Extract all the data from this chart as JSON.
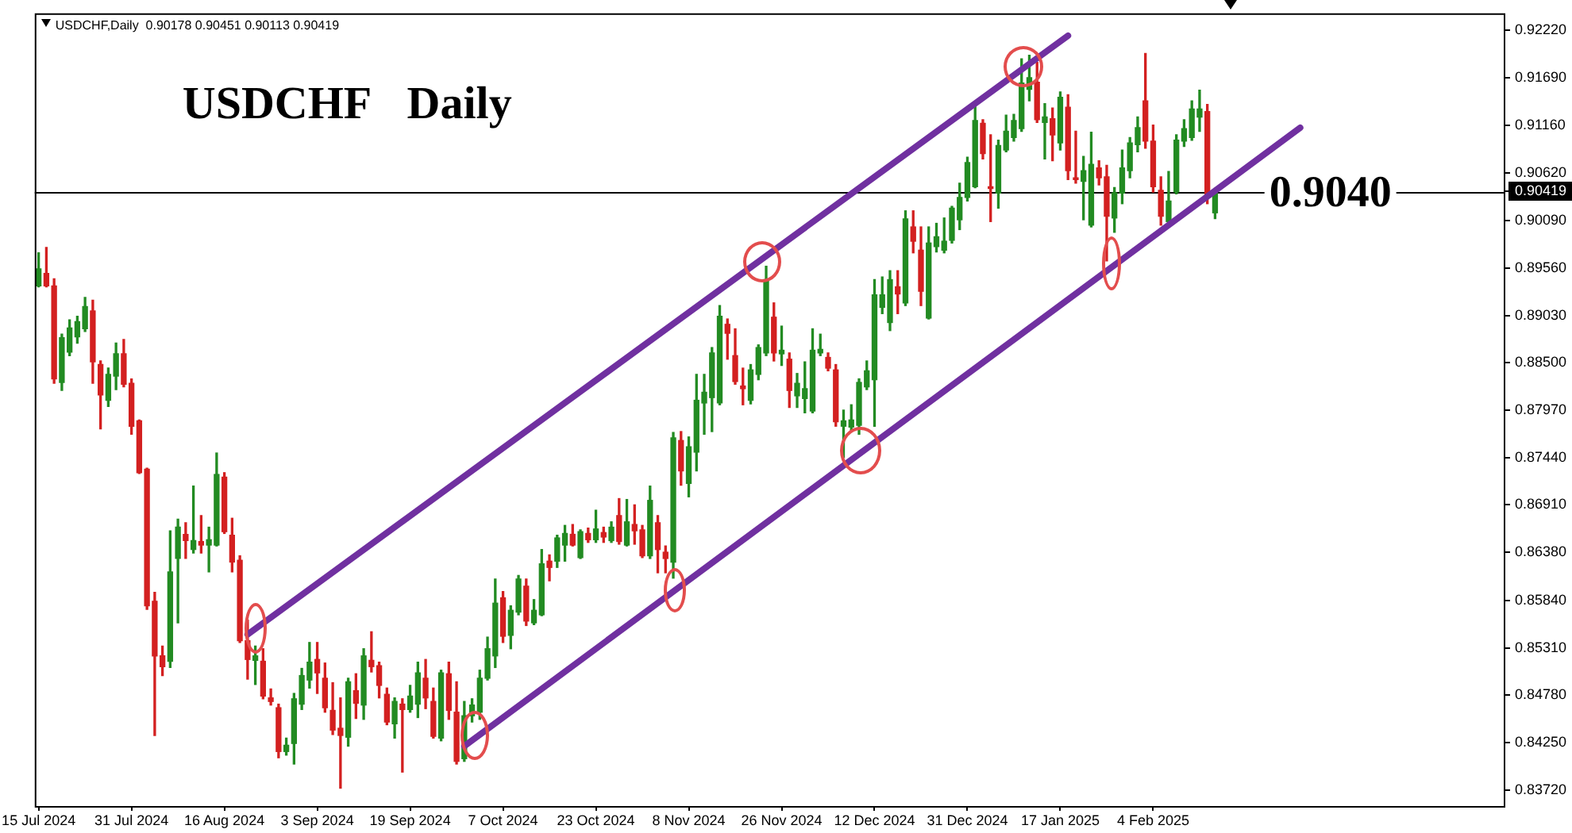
{
  "chart_data": {
    "type": "candlestick",
    "title": "USDCHF Daily",
    "subtitle": "USDCHF,Daily  0.90178 0.90451 0.90113 0.90419",
    "categories": [
      "15 Jul 2024",
      null,
      null,
      null,
      null,
      null,
      null,
      null,
      null,
      null,
      null,
      null,
      "31 Jul 2024",
      null,
      null,
      null,
      null,
      null,
      null,
      null,
      null,
      null,
      null,
      null,
      "16 Aug 2024",
      null,
      null,
      null,
      null,
      null,
      null,
      null,
      null,
      null,
      null,
      null,
      "3 Sep 2024",
      null,
      null,
      null,
      null,
      null,
      null,
      null,
      null,
      null,
      null,
      null,
      "19 Sep 2024",
      null,
      null,
      null,
      null,
      null,
      null,
      null,
      null,
      null,
      null,
      null,
      "7 Oct 2024",
      null,
      null,
      null,
      null,
      null,
      null,
      null,
      null,
      null,
      null,
      null,
      "23 Oct 2024",
      null,
      null,
      null,
      null,
      null,
      null,
      null,
      null,
      null,
      null,
      null,
      "8 Nov 2024",
      null,
      null,
      null,
      null,
      null,
      null,
      null,
      null,
      null,
      null,
      null,
      "26 Nov 2024",
      null,
      null,
      null,
      null,
      null,
      null,
      null,
      null,
      null,
      null,
      null,
      "12 Dec 2024",
      null,
      null,
      null,
      null,
      null,
      null,
      null,
      null,
      null,
      null,
      null,
      "31 Dec 2024",
      null,
      null,
      null,
      null,
      null,
      null,
      null,
      null,
      null,
      null,
      null,
      "17 Jan 2025",
      null,
      null,
      null,
      null,
      null,
      null,
      null,
      null,
      null,
      null,
      null,
      "4 Feb 2025",
      null,
      null,
      null,
      null,
      null,
      null,
      null,
      null,
      null,
      null,
      null,
      null,
      null,
      null,
      null,
      null,
      null,
      null,
      null,
      null,
      null,
      null,
      null,
      null,
      null,
      null,
      null,
      null,
      null,
      null,
      null,
      null,
      null,
      null,
      null,
      null,
      null,
      null,
      null,
      null,
      null,
      null,
      null,
      null,
      null
    ],
    "ohlc": [
      [
        0.8936,
        0.8973,
        0.8935,
        0.8955
      ],
      [
        0.895,
        0.8979,
        0.8935,
        0.8936
      ],
      [
        0.8936,
        0.8944,
        0.8827,
        0.8832
      ],
      [
        0.8828,
        0.8882,
        0.8819,
        0.8878
      ],
      [
        0.8862,
        0.8898,
        0.8858,
        0.8889
      ],
      [
        0.8879,
        0.8902,
        0.8872,
        0.8896
      ],
      [
        0.8888,
        0.8923,
        0.8885,
        0.8913
      ],
      [
        0.8908,
        0.892,
        0.8827,
        0.8851
      ],
      [
        0.8848,
        0.8852,
        0.8776,
        0.8814
      ],
      [
        0.8808,
        0.8844,
        0.8801,
        0.8837
      ],
      [
        0.8835,
        0.8872,
        0.882,
        0.886
      ],
      [
        0.886,
        0.8876,
        0.8823,
        0.8826
      ],
      [
        0.8827,
        0.8832,
        0.877,
        0.8779
      ],
      [
        0.8785,
        0.8786,
        0.8726,
        0.8727
      ],
      [
        0.8731,
        0.8732,
        0.8574,
        0.8578
      ],
      [
        0.8583,
        0.8593,
        0.8433,
        0.8522
      ],
      [
        0.8522,
        0.8533,
        0.85,
        0.851
      ],
      [
        0.8516,
        0.8662,
        0.8509,
        0.8616
      ],
      [
        0.8631,
        0.8675,
        0.8559,
        0.8666
      ],
      [
        0.8658,
        0.8671,
        0.8631,
        0.8651
      ],
      [
        0.8641,
        0.8712,
        0.8637,
        0.8651
      ],
      [
        0.865,
        0.8679,
        0.8637,
        0.8646
      ],
      [
        0.8646,
        0.8666,
        0.8616,
        0.8652
      ],
      [
        0.8646,
        0.8749,
        0.8645,
        0.8725
      ],
      [
        0.8722,
        0.8727,
        0.8659,
        0.8661
      ],
      [
        0.8657,
        0.8676,
        0.8616,
        0.8627
      ],
      [
        0.8629,
        0.8634,
        0.8537,
        0.8539
      ],
      [
        0.8539,
        0.8562,
        0.8496,
        0.8518
      ],
      [
        0.8517,
        0.8533,
        0.849,
        0.8522
      ],
      [
        0.8516,
        0.853,
        0.8474,
        0.8477
      ],
      [
        0.8475,
        0.8485,
        0.8467,
        0.8471
      ],
      [
        0.8464,
        0.8468,
        0.8408,
        0.8415
      ],
      [
        0.8415,
        0.843,
        0.8411,
        0.8422
      ],
      [
        0.8424,
        0.848,
        0.8401,
        0.8474
      ],
      [
        0.8468,
        0.8508,
        0.8462,
        0.85
      ],
      [
        0.8495,
        0.8537,
        0.8486,
        0.8515
      ],
      [
        0.8518,
        0.8537,
        0.848,
        0.8503
      ],
      [
        0.8497,
        0.8514,
        0.8459,
        0.8464
      ],
      [
        0.8461,
        0.8492,
        0.8434,
        0.8439
      ],
      [
        0.8441,
        0.8475,
        0.8374,
        0.8433
      ],
      [
        0.8431,
        0.8497,
        0.8421,
        0.8493
      ],
      [
        0.8483,
        0.8502,
        0.8452,
        0.8469
      ],
      [
        0.8467,
        0.853,
        0.8451,
        0.8522
      ],
      [
        0.8517,
        0.8549,
        0.8504,
        0.851
      ],
      [
        0.8511,
        0.8515,
        0.8475,
        0.8489
      ],
      [
        0.8479,
        0.8486,
        0.8445,
        0.8448
      ],
      [
        0.8446,
        0.8475,
        0.843,
        0.8471
      ],
      [
        0.8468,
        0.8474,
        0.8392,
        0.8462
      ],
      [
        0.8462,
        0.8489,
        0.8459,
        0.8477
      ],
      [
        0.8468,
        0.8515,
        0.8453,
        0.8503
      ],
      [
        0.8497,
        0.8518,
        0.8463,
        0.8475
      ],
      [
        0.8471,
        0.8486,
        0.843,
        0.8432
      ],
      [
        0.843,
        0.8506,
        0.8427,
        0.8503
      ],
      [
        0.8502,
        0.8515,
        0.8451,
        0.8461
      ],
      [
        0.8459,
        0.8493,
        0.8401,
        0.8404
      ],
      [
        0.8407,
        0.8471,
        0.8404,
        0.8455
      ],
      [
        0.8455,
        0.8474,
        0.8448,
        0.8467
      ],
      [
        0.8459,
        0.8506,
        0.8451,
        0.8497
      ],
      [
        0.8497,
        0.8543,
        0.8495,
        0.853
      ],
      [
        0.8522,
        0.8608,
        0.8509,
        0.8581
      ],
      [
        0.8587,
        0.8594,
        0.8537,
        0.8544
      ],
      [
        0.8545,
        0.8578,
        0.853,
        0.8573
      ],
      [
        0.8571,
        0.8612,
        0.8568,
        0.8608
      ],
      [
        0.86,
        0.8608,
        0.8556,
        0.8561
      ],
      [
        0.8559,
        0.8585,
        0.8557,
        0.8573
      ],
      [
        0.8568,
        0.8641,
        0.8567,
        0.8625
      ],
      [
        0.8628,
        0.8635,
        0.8606,
        0.8621
      ],
      [
        0.8628,
        0.8657,
        0.8621,
        0.8654
      ],
      [
        0.8646,
        0.8668,
        0.8628,
        0.8659
      ],
      [
        0.8658,
        0.8669,
        0.8645,
        0.8646
      ],
      [
        0.8632,
        0.8663,
        0.8631,
        0.8661
      ],
      [
        0.8659,
        0.8665,
        0.8649,
        0.8652
      ],
      [
        0.8652,
        0.8685,
        0.8649,
        0.8664
      ],
      [
        0.866,
        0.8666,
        0.8649,
        0.8655
      ],
      [
        0.8651,
        0.8672,
        0.8649,
        0.8666
      ],
      [
        0.8679,
        0.8698,
        0.8647,
        0.865
      ],
      [
        0.8646,
        0.8697,
        0.8645,
        0.8672
      ],
      [
        0.8669,
        0.8691,
        0.8647,
        0.8662
      ],
      [
        0.8663,
        0.8668,
        0.8632,
        0.8634
      ],
      [
        0.8634,
        0.8712,
        0.8631,
        0.8696
      ],
      [
        0.8671,
        0.8679,
        0.8615,
        0.8641
      ],
      [
        0.8638,
        0.8645,
        0.8615,
        0.8631
      ],
      [
        0.8627,
        0.8772,
        0.8609,
        0.8766
      ],
      [
        0.8763,
        0.8773,
        0.8713,
        0.8729
      ],
      [
        0.8715,
        0.8767,
        0.87,
        0.8756
      ],
      [
        0.875,
        0.8837,
        0.8729,
        0.8808
      ],
      [
        0.8805,
        0.8837,
        0.877,
        0.8817
      ],
      [
        0.8811,
        0.8867,
        0.8773,
        0.8861
      ],
      [
        0.8805,
        0.8914,
        0.8803,
        0.8902
      ],
      [
        0.8893,
        0.8899,
        0.8854,
        0.8883
      ],
      [
        0.8858,
        0.8888,
        0.8826,
        0.8829
      ],
      [
        0.8824,
        0.8844,
        0.8803,
        0.8821
      ],
      [
        0.8808,
        0.8848,
        0.8804,
        0.8842
      ],
      [
        0.8837,
        0.887,
        0.8831,
        0.8867
      ],
      [
        0.8861,
        0.8958,
        0.8858,
        0.8943
      ],
      [
        0.8901,
        0.8917,
        0.8852,
        0.8861
      ],
      [
        0.886,
        0.8891,
        0.8847,
        0.8864
      ],
      [
        0.8854,
        0.8861,
        0.88,
        0.8819
      ],
      [
        0.8813,
        0.8838,
        0.88,
        0.8827
      ],
      [
        0.881,
        0.8851,
        0.8794,
        0.8821
      ],
      [
        0.8796,
        0.8888,
        0.8794,
        0.8864
      ],
      [
        0.8861,
        0.8882,
        0.8858,
        0.8865
      ],
      [
        0.8856,
        0.8861,
        0.8841,
        0.8844
      ],
      [
        0.8842,
        0.8848,
        0.8779,
        0.8784
      ],
      [
        0.8779,
        0.8797,
        0.8744,
        0.8785
      ],
      [
        0.8778,
        0.8803,
        0.8774,
        0.8786
      ],
      [
        0.878,
        0.8832,
        0.877,
        0.8828
      ],
      [
        0.8823,
        0.8852,
        0.882,
        0.8841
      ],
      [
        0.8831,
        0.8943,
        0.8779,
        0.8926
      ],
      [
        0.8912,
        0.8946,
        0.8905,
        0.8926
      ],
      [
        0.8895,
        0.8953,
        0.8886,
        0.8943
      ],
      [
        0.8935,
        0.8953,
        0.8905,
        0.8927
      ],
      [
        0.8917,
        0.902,
        0.8914,
        0.9011
      ],
      [
        0.9002,
        0.902,
        0.8973,
        0.8986
      ],
      [
        0.8976,
        0.9002,
        0.8914,
        0.893
      ],
      [
        0.89,
        0.9002,
        0.8899,
        0.8984
      ],
      [
        0.898,
        0.9006,
        0.8974,
        0.8991
      ],
      [
        0.8976,
        0.9012,
        0.8973,
        0.8986
      ],
      [
        0.8987,
        0.9025,
        0.8984,
        0.9023
      ],
      [
        0.901,
        0.9051,
        0.8999,
        0.9035
      ],
      [
        0.9035,
        0.908,
        0.9031,
        0.9074
      ],
      [
        0.9047,
        0.9137,
        0.9046,
        0.9121
      ],
      [
        0.9118,
        0.9122,
        0.9078,
        0.9084
      ],
      [
        0.9047,
        0.9105,
        0.9008,
        0.9045
      ],
      [
        0.904,
        0.9099,
        0.9023,
        0.9093
      ],
      [
        0.9088,
        0.9127,
        0.9086,
        0.9109
      ],
      [
        0.9102,
        0.9128,
        0.9098,
        0.9121
      ],
      [
        0.9112,
        0.919,
        0.9109,
        0.9163
      ],
      [
        0.9156,
        0.9194,
        0.9143,
        0.9169
      ],
      [
        0.9164,
        0.9186,
        0.9119,
        0.9122
      ],
      [
        0.9119,
        0.914,
        0.9078,
        0.9125
      ],
      [
        0.9123,
        0.9135,
        0.9076,
        0.9105
      ],
      [
        0.9096,
        0.9153,
        0.9088,
        0.9147
      ],
      [
        0.9136,
        0.915,
        0.9055,
        0.9065
      ],
      [
        0.9057,
        0.9109,
        0.9051,
        0.9055
      ],
      [
        0.9053,
        0.9081,
        0.901,
        0.9065
      ],
      [
        0.9004,
        0.9108,
        0.9002,
        0.9072
      ],
      [
        0.9068,
        0.9076,
        0.9049,
        0.9057
      ],
      [
        0.9058,
        0.9071,
        0.8964,
        0.9014
      ],
      [
        0.9012,
        0.9046,
        0.8996,
        0.904
      ],
      [
        0.904,
        0.9088,
        0.9028,
        0.9068
      ],
      [
        0.9065,
        0.9102,
        0.9057,
        0.9096
      ],
      [
        0.9094,
        0.9125,
        0.9086,
        0.9113
      ],
      [
        0.9143,
        0.9196,
        0.909,
        0.9098
      ],
      [
        0.9098,
        0.9116,
        0.9041,
        0.9047
      ],
      [
        0.9043,
        0.9058,
        0.9004,
        0.9014
      ],
      [
        0.9008,
        0.9064,
        0.9005,
        0.9031
      ],
      [
        0.9041,
        0.9105,
        0.9039,
        0.9099
      ],
      [
        0.9098,
        0.9122,
        0.9092,
        0.9112
      ],
      [
        0.9102,
        0.9143,
        0.9099,
        0.9134
      ],
      [
        0.9125,
        0.9155,
        0.9109,
        0.9134
      ],
      [
        0.9131,
        0.9139,
        0.9028,
        0.9035
      ],
      [
        0.90178,
        0.90451,
        0.90113,
        0.90419
      ],
      null,
      null,
      null,
      null,
      null,
      null,
      null,
      null,
      null,
      null,
      null,
      null,
      null,
      null,
      null,
      null,
      null,
      null,
      null,
      null,
      null,
      null,
      null,
      null,
      null,
      null,
      null,
      null,
      null,
      null,
      null,
      null,
      null,
      null,
      null,
      null,
      null
    ],
    "colors": [
      "#228b22",
      "#d32020",
      "#d32020",
      "#228b22",
      "#228b22",
      "#228b22",
      "#228b22",
      "#d32020",
      "#d32020",
      "#228b22",
      "#228b22",
      "#d32020",
      "#d32020",
      "#d32020",
      "#d32020",
      "#d32020",
      "#d32020",
      "#228b22",
      "#228b22",
      "#d32020",
      "#228b22",
      "#d32020",
      "#228b22",
      "#228b22",
      "#d32020",
      "#d32020",
      "#d32020",
      "#d32020",
      "#228b22",
      "#d32020",
      "#d32020",
      "#d32020",
      "#228b22",
      "#228b22",
      "#228b22",
      "#228b22",
      "#d32020",
      "#d32020",
      "#d32020",
      "#d32020",
      "#228b22",
      "#d32020",
      "#228b22",
      "#d32020",
      "#d32020",
      "#d32020",
      "#228b22",
      "#d32020",
      "#228b22",
      "#228b22",
      "#d32020",
      "#d32020",
      "#228b22",
      "#d32020",
      "#d32020",
      "#228b22",
      "#228b22",
      "#228b22",
      "#228b22",
      "#228b22",
      "#d32020",
      "#228b22",
      "#228b22",
      "#d32020",
      "#228b22",
      "#228b22",
      "#d32020",
      "#228b22",
      "#228b22",
      "#d32020",
      "#228b22",
      "#d32020",
      "#228b22",
      "#d32020",
      "#228b22",
      "#d32020",
      "#228b22",
      "#d32020",
      "#d32020",
      "#228b22",
      "#d32020",
      "#d32020",
      "#228b22",
      "#d32020",
      "#228b22",
      "#228b22",
      "#228b22",
      "#228b22",
      "#228b22",
      "#d32020",
      "#d32020",
      "#d32020",
      "#228b22",
      "#228b22",
      "#228b22",
      "#d32020",
      "#228b22",
      "#d32020",
      "#228b22",
      "#228b22",
      "#228b22",
      "#228b22",
      "#d32020",
      "#d32020",
      "#228b22",
      "#228b22",
      "#228b22",
      "#228b22",
      "#228b22",
      "#228b22",
      "#228b22",
      "#d32020",
      "#228b22",
      "#d32020",
      "#d32020",
      "#228b22",
      "#228b22",
      "#228b22",
      "#228b22",
      "#228b22",
      "#228b22",
      "#228b22",
      "#d32020",
      "#d32020",
      "#228b22",
      "#228b22",
      "#228b22",
      "#228b22",
      "#228b22",
      "#d32020",
      "#228b22",
      "#d32020",
      "#228b22",
      "#d32020",
      "#d32020",
      "#228b22",
      "#228b22",
      "#d32020",
      "#d32020",
      "#228b22",
      "#228b22",
      "#228b22",
      "#228b22",
      "#d32020",
      "#d32020",
      "#d32020",
      "#228b22",
      "#228b22",
      "#228b22",
      "#228b22",
      "#228b22",
      "#d32020",
      "#228b22",
      null,
      null,
      null,
      null,
      null,
      null,
      null,
      null,
      null,
      null,
      null,
      null,
      null,
      null,
      null,
      null,
      null,
      null,
      null,
      null,
      null,
      null,
      null,
      null,
      null,
      null,
      null,
      null,
      null,
      null,
      null,
      null,
      null,
      null,
      null,
      null,
      null
    ],
    "series": [
      {
        "type": "line",
        "color": "#7030a0",
        "values": [
          null,
          null,
          null,
          null,
          null,
          null,
          null,
          null,
          null,
          null,
          null,
          null,
          null,
          null,
          null,
          null,
          null,
          null,
          null,
          null,
          null,
          null,
          null,
          null,
          null,
          null,
          null,
          0.8546,
          null,
          null,
          null,
          null,
          null,
          null,
          null,
          null,
          null,
          null,
          null,
          null,
          null,
          null,
          null,
          null,
          null,
          null,
          null,
          null,
          null,
          null,
          null,
          null,
          null,
          null,
          null,
          null,
          null,
          null,
          null,
          null,
          null,
          null,
          null,
          null,
          null,
          null,
          null,
          null,
          null,
          null,
          null,
          null,
          null,
          null,
          null,
          null,
          null,
          null,
          null,
          null,
          null,
          null,
          null,
          null,
          null,
          null,
          null,
          null,
          null,
          null,
          null,
          null,
          null,
          null,
          null,
          null,
          null,
          null,
          null,
          null,
          null,
          null,
          null,
          null,
          null,
          null,
          null,
          null,
          null,
          null,
          null,
          null,
          null,
          null,
          null,
          null,
          null,
          null,
          null,
          null,
          null,
          null,
          null,
          null,
          null,
          null,
          null,
          null,
          null,
          null,
          null,
          null,
          null,
          0.9216,
          null,
          null,
          null,
          null,
          null,
          null,
          null,
          null,
          null,
          null,
          null,
          null,
          null,
          null,
          null,
          null,
          null,
          null,
          null,
          null,
          null,
          null,
          null,
          null,
          null,
          null,
          null,
          null,
          null,
          null,
          null,
          null,
          null,
          null,
          null,
          null,
          null,
          null,
          null,
          null,
          null,
          null,
          null,
          null,
          null,
          null,
          null,
          null,
          null,
          null,
          null,
          null,
          null,
          null,
          null,
          null
        ]
      },
      {
        "type": "line",
        "color": "#7030a0",
        "values": [
          null,
          null,
          null,
          null,
          null,
          null,
          null,
          null,
          null,
          null,
          null,
          null,
          null,
          null,
          null,
          null,
          null,
          null,
          null,
          null,
          null,
          null,
          null,
          null,
          null,
          null,
          null,
          null,
          null,
          null,
          null,
          null,
          null,
          null,
          null,
          null,
          null,
          null,
          null,
          null,
          null,
          null,
          null,
          null,
          null,
          null,
          null,
          null,
          null,
          null,
          null,
          null,
          null,
          null,
          null,
          0.8421,
          null,
          null,
          null,
          null,
          null,
          null,
          null,
          null,
          null,
          null,
          null,
          null,
          null,
          null,
          null,
          null,
          null,
          null,
          null,
          null,
          null,
          null,
          null,
          null,
          null,
          null,
          null,
          null,
          null,
          null,
          null,
          null,
          null,
          null,
          null,
          null,
          null,
          null,
          null,
          null,
          null,
          null,
          null,
          null,
          null,
          null,
          null,
          null,
          null,
          null,
          null,
          null,
          null,
          null,
          null,
          null,
          null,
          null,
          null,
          null,
          null,
          null,
          null,
          null,
          null,
          null,
          null,
          null,
          null,
          null,
          null,
          null,
          null,
          null,
          null,
          null,
          null,
          null,
          null,
          null,
          null,
          null,
          null,
          null,
          null,
          null,
          null,
          null,
          null,
          null,
          null,
          null,
          null,
          null,
          null,
          null,
          null,
          null,
          null,
          null,
          null,
          null,
          null,
          null,
          null,
          null,
          null,
          0.9113,
          null,
          null,
          null,
          null,
          null,
          null,
          null,
          null,
          null,
          null,
          null,
          null,
          null,
          null,
          null,
          null,
          null,
          null,
          null,
          null,
          null,
          null,
          null,
          null,
          null,
          null
        ]
      }
    ],
    "ylim": [
      0.8354,
      0.9241
    ],
    "yticks": [
      {
        "value": 0.9222,
        "label": "0.92220"
      },
      {
        "value": 0.9169,
        "label": "0.91690"
      },
      {
        "value": 0.9116,
        "label": "0.91160"
      },
      {
        "value": 0.9062,
        "label": "0.90620"
      },
      0.90419,
      {
        "value": 0.9009,
        "label": "0.90090"
      },
      {
        "value": 0.8956,
        "label": "0.89560"
      },
      {
        "value": 0.8903,
        "label": "0.89030"
      },
      {
        "value": 0.885,
        "label": "0.88500"
      },
      {
        "value": 0.8797,
        "label": "0.87970"
      },
      {
        "value": 0.8744,
        "label": "0.87440"
      },
      {
        "value": 0.8691,
        "label": "0.86910"
      },
      {
        "value": 0.8638,
        "label": "0.86380"
      },
      {
        "value": 0.8584,
        "label": "0.85840"
      },
      {
        "value": 0.8531,
        "label": "0.85310"
      },
      {
        "value": 0.8478,
        "label": "0.84780"
      },
      {
        "value": 0.8425,
        "label": "0.84250"
      },
      {
        "value": 0.8372,
        "label": "0.83720"
      }
    ],
    "ref_lines": [
      {
        "axis": "y",
        "value": 0.90419,
        "color": "#000000"
      }
    ],
    "annotations": [
      {
        "text": "0.9040",
        "y": 0.904
      }
    ]
  }
}
